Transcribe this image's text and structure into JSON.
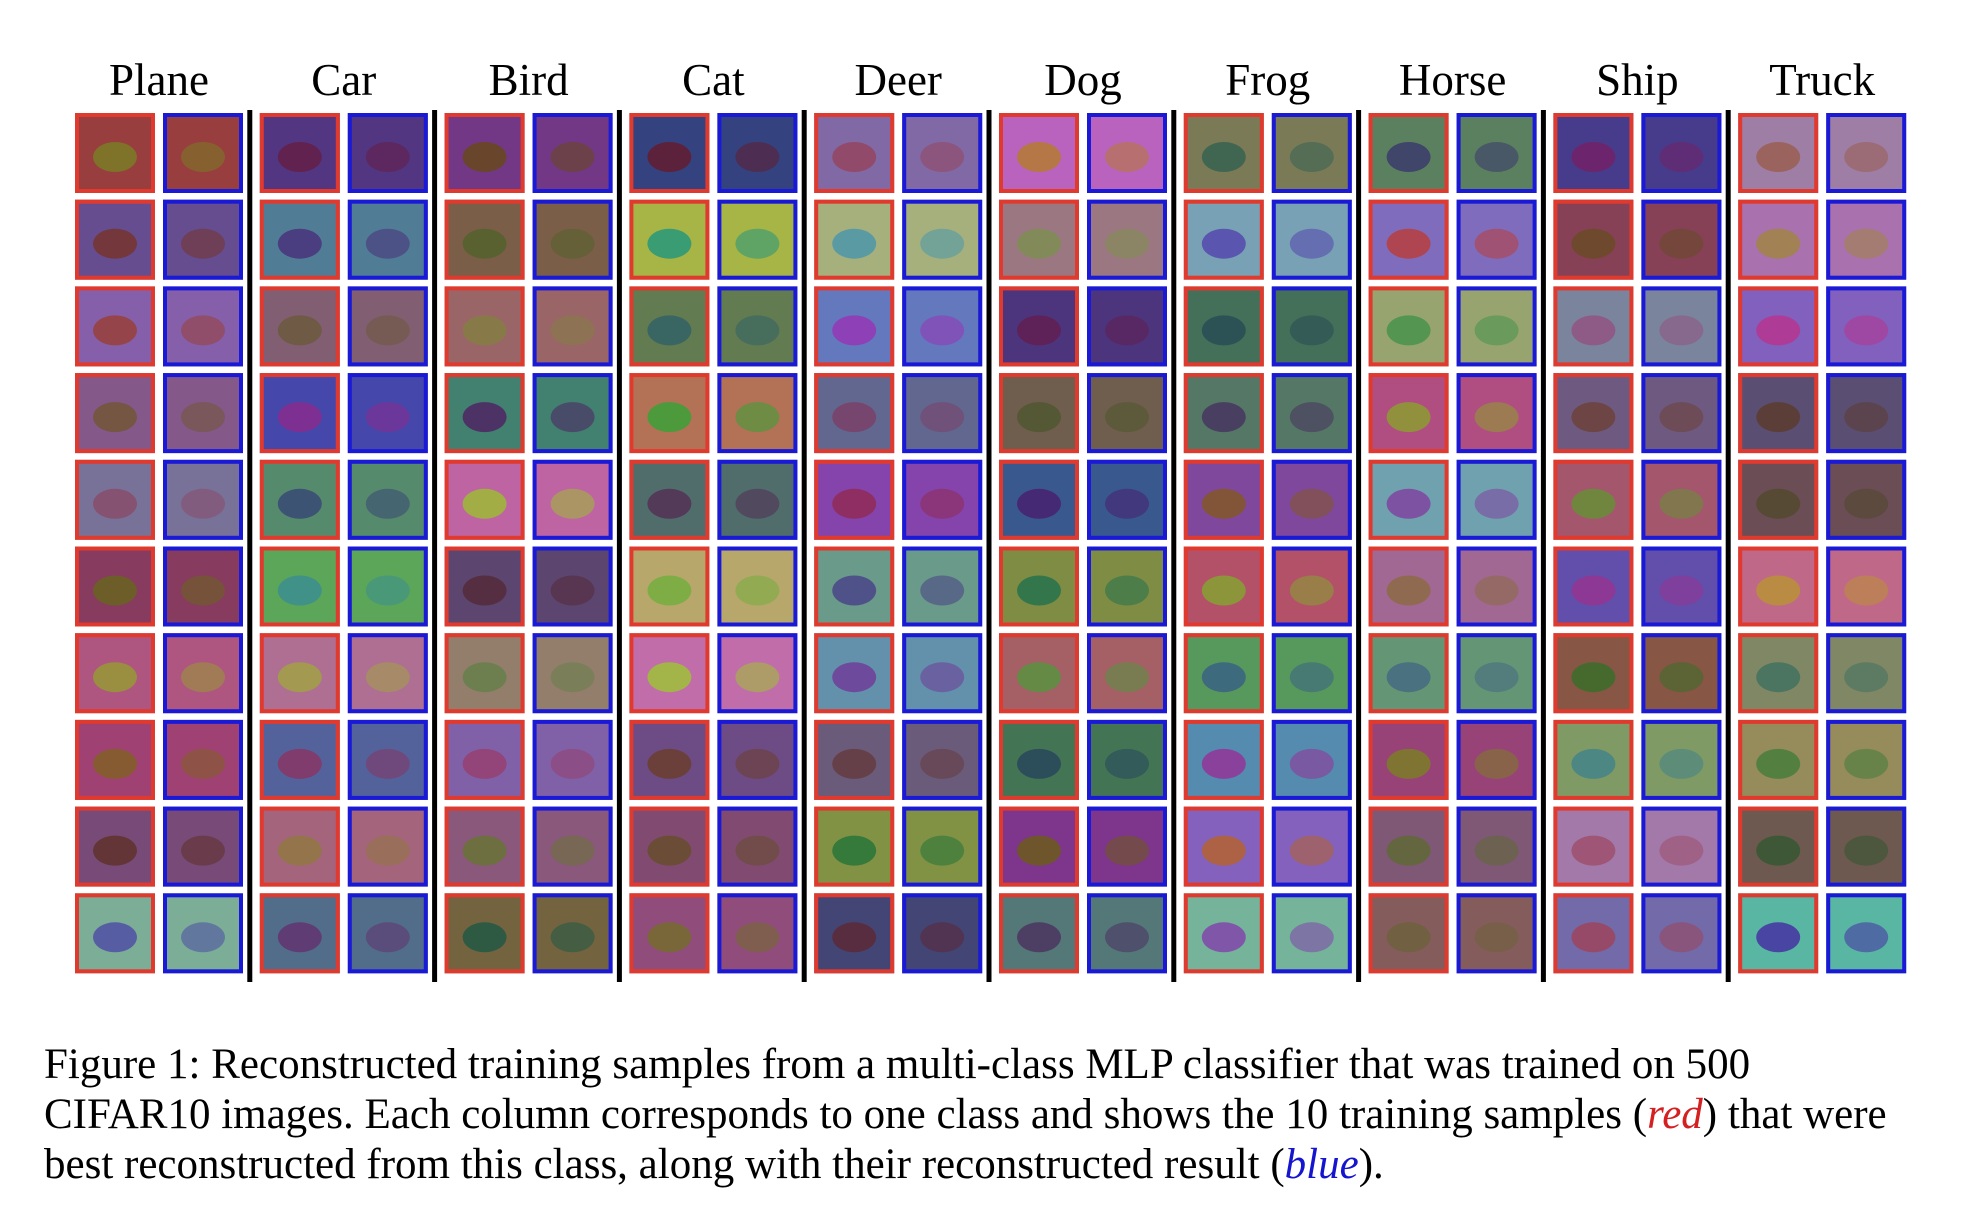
{
  "figure": {
    "classes": [
      "Plane",
      "Car",
      "Bird",
      "Cat",
      "Deer",
      "Dog",
      "Frog",
      "Horse",
      "Ship",
      "Truck"
    ],
    "caption": {
      "parts": [
        "Figure 1: Reconstructed training samples from a multi-class MLP classifier that was trained on 500 CIFAR10 images. Each column corresponds to one class and shows the 10 training samples (",
        "red",
        ") that were best reconstructed from this class, along with their reconstructed result (",
        "blue",
        ")."
      ]
    }
  }
}
